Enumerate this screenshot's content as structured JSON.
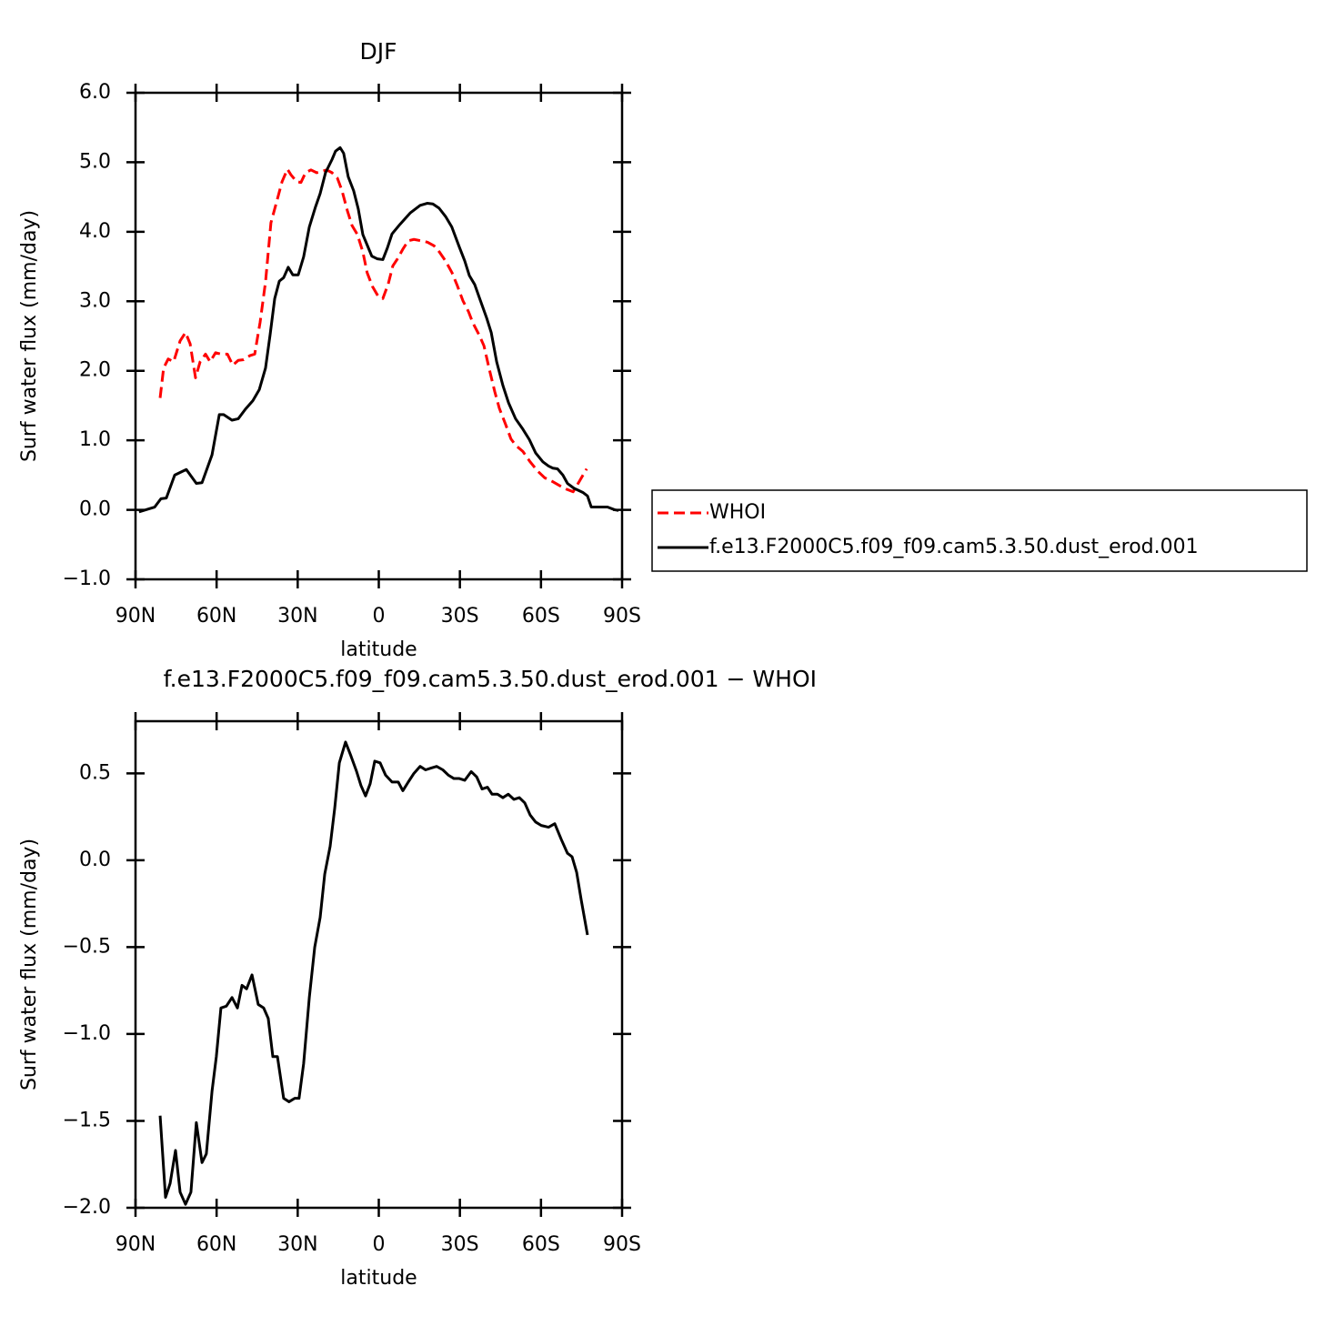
{
  "chart_data": [
    {
      "type": "line",
      "title": "DJF",
      "xlabel": "latitude",
      "ylabel": "Surf water flux (mm/day)",
      "xlim": [
        90,
        -90
      ],
      "ylim": [
        -1,
        6
      ],
      "xticks": [
        {
          "value": 90,
          "label": "90N"
        },
        {
          "value": 60,
          "label": "60N"
        },
        {
          "value": 30,
          "label": "30N"
        },
        0,
        {
          "value": -30,
          "label": "30S"
        },
        {
          "value": -60,
          "label": "60S"
        },
        {
          "value": -90,
          "label": "90S"
        }
      ],
      "yticks": [
        {
          "value": -1,
          "label": "−1.0"
        },
        {
          "value": 0,
          "label": "0.0"
        },
        {
          "value": 1,
          "label": "1.0"
        },
        {
          "value": 2,
          "label": "2.0"
        },
        {
          "value": 3,
          "label": "3.0"
        },
        {
          "value": 4,
          "label": "4.0"
        },
        {
          "value": 5,
          "label": "5.0"
        },
        {
          "value": 6,
          "label": "6.0"
        }
      ],
      "legend": "outside right",
      "series": [
        {
          "name": "WHOI",
          "color": "#ff0000",
          "dash": true,
          "x": [
            80.9,
            79.6,
            77.9,
            75.9,
            73.5,
            71.5,
            69.8,
            67.8,
            66.1,
            64.1,
            62.4,
            60.4,
            58.4,
            56.0,
            54.0,
            52.0,
            50.0,
            47.6,
            45.9,
            43.9,
            41.9,
            39.9,
            37.8,
            35.8,
            33.8,
            32.5,
            30.4,
            28.8,
            27.1,
            25.1,
            23.0,
            21.0,
            19.3,
            17.3,
            15.3,
            13.6,
            11.6,
            9.9,
            7.9,
            5.9,
            4.3,
            2.3,
            0.2,
            -1.5,
            -3.5,
            -5.2,
            -6.9,
            -8.9,
            -10.9,
            -13.0,
            -15.7,
            -18.0,
            -20.4,
            -22.4,
            -24.7,
            -27.1,
            -29.1,
            -31.1,
            -33.2,
            -34.8,
            -37.2,
            -38.9,
            -40.9,
            -42.9,
            -44.6,
            -46.9,
            -48.9,
            -50.6,
            -53.3,
            -56.0,
            -58.7,
            -61.4,
            -64.1,
            -66.8,
            -69.2,
            -71.9,
            -74.2,
            -76.9
          ],
          "values": [
            1.61,
            2.04,
            2.17,
            2.13,
            2.43,
            2.55,
            2.39,
            1.9,
            2.13,
            2.24,
            2.13,
            2.26,
            2.24,
            2.24,
            2.08,
            2.15,
            2.16,
            2.22,
            2.24,
            2.7,
            3.28,
            4.13,
            4.43,
            4.72,
            4.9,
            4.82,
            4.72,
            4.71,
            4.85,
            4.89,
            4.85,
            4.87,
            4.89,
            4.85,
            4.77,
            4.59,
            4.3,
            4.09,
            3.96,
            3.71,
            3.41,
            3.21,
            3.07,
            3.04,
            3.25,
            3.51,
            3.61,
            3.75,
            3.87,
            3.89,
            3.87,
            3.85,
            3.8,
            3.71,
            3.58,
            3.41,
            3.22,
            3.01,
            2.85,
            2.69,
            2.51,
            2.36,
            2.02,
            1.7,
            1.46,
            1.23,
            1.02,
            0.93,
            0.84,
            0.69,
            0.56,
            0.46,
            0.41,
            0.35,
            0.3,
            0.26,
            0.41,
            0.59
          ]
        },
        {
          "name": "f.e13.F2000C5.f09_f09.cam5.3.50.dust_erod.001",
          "color": "#000000",
          "dash": false,
          "x": [
            88.7,
            82.9,
            80.6,
            78.6,
            75.5,
            72.8,
            71.2,
            67.5,
            65.4,
            61.7,
            59.0,
            57.4,
            54.3,
            52.0,
            49.3,
            46.6,
            44.2,
            41.9,
            40.2,
            38.5,
            36.8,
            35.2,
            33.5,
            31.8,
            29.8,
            27.8,
            25.7,
            23.4,
            21.7,
            19.7,
            17.3,
            16.0,
            14.3,
            13.0,
            11.3,
            9.3,
            7.6,
            5.9,
            4.3,
            2.6,
            0.5,
            -1.5,
            -3.2,
            -4.9,
            -7.9,
            -11.6,
            -15.3,
            -17.9,
            -20.0,
            -22.3,
            -24.7,
            -27.0,
            -29.8,
            -31.8,
            -33.5,
            -35.5,
            -37.5,
            -39.9,
            -41.6,
            -43.6,
            -45.9,
            -48.0,
            -50.6,
            -53.3,
            -55.7,
            -58.0,
            -60.7,
            -62.8,
            -64.4,
            -66.1,
            -68.1,
            -69.8,
            -72.2,
            -75.5,
            -77.2,
            -78.6,
            -81.9,
            -84.6,
            -87.3,
            -88.7
          ],
          "values": [
            -0.03,
            0.04,
            0.16,
            0.17,
            0.5,
            0.55,
            0.58,
            0.38,
            0.39,
            0.79,
            1.37,
            1.37,
            1.29,
            1.31,
            1.45,
            1.57,
            1.73,
            2.04,
            2.52,
            3.04,
            3.29,
            3.34,
            3.49,
            3.38,
            3.38,
            3.64,
            4.07,
            4.36,
            4.55,
            4.85,
            5.04,
            5.16,
            5.21,
            5.13,
            4.79,
            4.59,
            4.33,
            3.96,
            3.81,
            3.65,
            3.61,
            3.6,
            3.77,
            3.97,
            4.11,
            4.27,
            4.38,
            4.41,
            4.4,
            4.34,
            4.22,
            4.07,
            3.78,
            3.58,
            3.37,
            3.24,
            3.02,
            2.76,
            2.55,
            2.13,
            1.79,
            1.54,
            1.31,
            1.16,
            1.01,
            0.82,
            0.69,
            0.63,
            0.6,
            0.59,
            0.5,
            0.38,
            0.31,
            0.25,
            0.2,
            0.04,
            0.04,
            0.04,
            0.0,
            -0.01
          ]
        }
      ]
    },
    {
      "type": "line",
      "title": "f.e13.F2000C5.f09_f09.cam5.3.50.dust_erod.001 − WHOI",
      "xlabel": "latitude",
      "ylabel": "Surf water flux (mm/day)",
      "xlim": [
        90,
        -90
      ],
      "ylim": [
        -2,
        0.8
      ],
      "xticks": [
        {
          "value": 90,
          "label": "90N"
        },
        {
          "value": 60,
          "label": "60N"
        },
        {
          "value": 30,
          "label": "30N"
        },
        0,
        {
          "value": -30,
          "label": "30S"
        },
        {
          "value": -60,
          "label": "60S"
        },
        {
          "value": -90,
          "label": "90S"
        }
      ],
      "yticks": [
        {
          "value": -2,
          "label": "−2.0"
        },
        {
          "value": -1.5,
          "label": "−1.5"
        },
        {
          "value": -1,
          "label": "−1.0"
        },
        {
          "value": -0.5,
          "label": "−0.5"
        },
        {
          "value": 0,
          "label": "0.0"
        },
        0.5
      ],
      "series": [
        {
          "color": "#000000",
          "dash": false,
          "x": [
            80.9,
            78.9,
            77.2,
            75.2,
            73.5,
            71.5,
            69.5,
            67.5,
            65.4,
            63.8,
            61.7,
            60.1,
            58.4,
            56.4,
            54.3,
            52.3,
            50.6,
            48.9,
            46.9,
            44.6,
            42.6,
            40.9,
            39.2,
            37.5,
            35.2,
            33.2,
            31.1,
            29.5,
            27.8,
            25.7,
            23.7,
            21.7,
            20.0,
            18.0,
            16.3,
            14.6,
            12.3,
            10.3,
            8.2,
            6.6,
            4.9,
            3.2,
            1.5,
            -0.5,
            -2.5,
            -4.9,
            -7.2,
            -8.9,
            -10.9,
            -13.0,
            -15.3,
            -17.3,
            -19.3,
            -21.4,
            -23.7,
            -25.7,
            -27.8,
            -29.8,
            -31.8,
            -34.2,
            -36.2,
            -38.2,
            -40.2,
            -41.9,
            -43.9,
            -45.9,
            -47.9,
            -50.0,
            -52.0,
            -54.0,
            -56.0,
            -58.0,
            -60.1,
            -62.8,
            -65.1,
            -67.5,
            -69.8,
            -71.5,
            -73.2,
            -74.9,
            -77.2
          ],
          "values": [
            -1.47,
            -1.94,
            -1.86,
            -1.67,
            -1.91,
            -1.98,
            -1.91,
            -1.51,
            -1.74,
            -1.69,
            -1.33,
            -1.13,
            -0.85,
            -0.84,
            -0.79,
            -0.85,
            -0.72,
            -0.74,
            -0.66,
            -0.83,
            -0.85,
            -0.91,
            -1.13,
            -1.13,
            -1.37,
            -1.39,
            -1.37,
            -1.37,
            -1.17,
            -0.79,
            -0.5,
            -0.33,
            -0.08,
            0.08,
            0.3,
            0.56,
            0.68,
            0.6,
            0.51,
            0.43,
            0.37,
            0.44,
            0.57,
            0.56,
            0.49,
            0.45,
            0.45,
            0.4,
            0.45,
            0.5,
            0.54,
            0.52,
            0.53,
            0.54,
            0.52,
            0.49,
            0.47,
            0.47,
            0.46,
            0.51,
            0.48,
            0.41,
            0.42,
            0.38,
            0.38,
            0.36,
            0.38,
            0.35,
            0.36,
            0.33,
            0.26,
            0.22,
            0.2,
            0.19,
            0.21,
            0.12,
            0.04,
            0.02,
            -0.07,
            -0.23,
            -0.43
          ]
        }
      ]
    }
  ]
}
